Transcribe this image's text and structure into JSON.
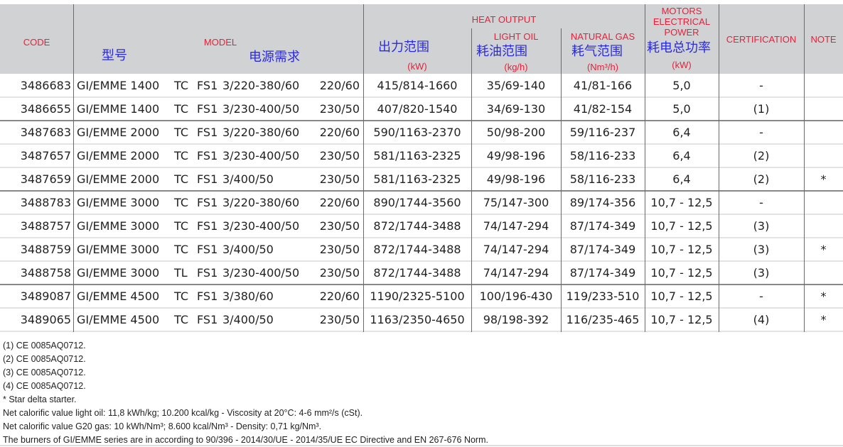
{
  "header": {
    "code": "CODE",
    "model": "MODEL",
    "model_cn": "型号",
    "supply_cn": "电源需求",
    "heat_output": "HEAT OUTPUT",
    "output_cn": "出力范围",
    "output_unit": "(kW)",
    "light_oil": "LIGHT OIL",
    "oil_cn": "耗油范围",
    "oil_unit": "(kg/h)",
    "natural_gas": "NATURAL GAS",
    "gas_cn": "耗气范围",
    "gas_unit": "(Nm³/h)",
    "motors": "MOTORS",
    "electrical": "ELECTRICAL",
    "power": "POWER",
    "power_cn": "耗电总功率",
    "power_unit": "(kW)",
    "certification": "CERTIFICATION",
    "note": "NOTE"
  },
  "colors": {
    "header_bg": "#d1d2d4",
    "header_text": "#e8203a",
    "annotation": "#2a2ae0",
    "divider": "#e8304a"
  },
  "rows": [
    {
      "code": "3486683",
      "model": "GI/EMME 1400",
      "type": "TC",
      "fs": "FS1",
      "supply": "3/220-380/60",
      "aux": "220/60",
      "output": "415/814-1660",
      "oil": "35/69-140",
      "gas": "41/81-166",
      "power": "5,0",
      "cert": "-",
      "note": ""
    },
    {
      "code": "3486655",
      "model": "GI/EMME 1400",
      "type": "TC",
      "fs": "FS1",
      "supply": "3/230-400/50",
      "aux": "230/50",
      "output": "407/820-1540",
      "oil": "34/69-130",
      "gas": "41/82-154",
      "power": "5,0",
      "cert": "(1)",
      "note": ""
    },
    {
      "code": "3487683",
      "model": "GI/EMME 2000",
      "type": "TC",
      "fs": "FS1",
      "supply": "3/220-380/60",
      "aux": "220/60",
      "output": "590/1163-2370",
      "oil": "50/98-200",
      "gas": "59/116-237",
      "power": "6,4",
      "cert": "-",
      "note": ""
    },
    {
      "code": "3487657",
      "model": "GI/EMME 2000",
      "type": "TC",
      "fs": "FS1",
      "supply": "3/230-400/50",
      "aux": "230/50",
      "output": "581/1163-2325",
      "oil": "49/98-196",
      "gas": "58/116-233",
      "power": "6,4",
      "cert": "(2)",
      "note": ""
    },
    {
      "code": "3487659",
      "model": "GI/EMME 2000",
      "type": "TC",
      "fs": "FS1",
      "supply": "3/400/50",
      "aux": "230/50",
      "output": "581/1163-2325",
      "oil": "49/98-196",
      "gas": "58/116-233",
      "power": "6,4",
      "cert": "(2)",
      "note": "*"
    },
    {
      "code": "3488783",
      "model": "GI/EMME 3000",
      "type": "TC",
      "fs": "FS1",
      "supply": "3/220-380/60",
      "aux": "220/60",
      "output": "890/1744-3560",
      "oil": "75/147-300",
      "gas": "89/174-356",
      "power": "10,7 - 12,5",
      "cert": "-",
      "note": ""
    },
    {
      "code": "3488757",
      "model": "GI/EMME 3000",
      "type": "TC",
      "fs": "FS1",
      "supply": "3/230-400/50",
      "aux": "230/50",
      "output": "872/1744-3488",
      "oil": "74/147-294",
      "gas": "87/174-349",
      "power": "10,7 - 12,5",
      "cert": "(3)",
      "note": ""
    },
    {
      "code": "3488759",
      "model": "GI/EMME 3000",
      "type": "TC",
      "fs": "FS1",
      "supply": "3/400/50",
      "aux": "230/50",
      "output": "872/1744-3488",
      "oil": "74/147-294",
      "gas": "87/174-349",
      "power": "10,7 - 12,5",
      "cert": "(3)",
      "note": "*"
    },
    {
      "code": "3488758",
      "model": "GI/EMME 3000",
      "type": "TL",
      "fs": "FS1",
      "supply": "3/230-400/50",
      "aux": "230/50",
      "output": "872/1744-3488",
      "oil": "74/147-294",
      "gas": "87/174-349",
      "power": "10,7 - 12,5",
      "cert": "(3)",
      "note": ""
    },
    {
      "code": "3489087",
      "model": "GI/EMME 4500",
      "type": "TC",
      "fs": "FS1",
      "supply": "3/380/60",
      "aux": "220/60",
      "output": "1190/2325-5100",
      "oil": "100/196-430",
      "gas": "119/233-510",
      "power": "10,7 - 12,5",
      "cert": "-",
      "note": "*"
    },
    {
      "code": "3489065",
      "model": "GI/EMME 4500",
      "type": "TC",
      "fs": "FS1",
      "supply": "3/400/50",
      "aux": "230/50",
      "output": "1163/2350-4650",
      "oil": "98/198-392",
      "gas": "116/235-465",
      "power": "10,7 - 12,5",
      "cert": "(4)",
      "note": "*"
    }
  ],
  "footnotes": [
    "(1) CE 0085AQ0712.",
    "(2) CE 0085AQ0712.",
    "(3) CE 0085AQ0712.",
    "(4) CE 0085AQ0712.",
    "* Star delta starter.",
    "Net calorific value light oil: 11,8 kWh/kg; 10.200 kcal/kg - Viscosity at 20°C: 4-6 mm²/s (cSt).",
    "Net calorific value G20 gas: 10 kWh/Nm³; 8.600 kcal/Nm³ - Density: 0,71 kg/Nm³.",
    "The burners of GI/EMME series are in according to 90/396 - 2014/30/UE - 2014/35/UE EC Directive and EN 267-676 Norm."
  ]
}
